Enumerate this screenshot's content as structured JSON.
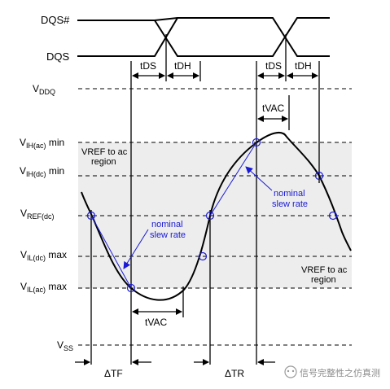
{
  "signals": {
    "dqs_n": "DQS#",
    "dqs": "DQS"
  },
  "timing": {
    "tds_1": "tDS",
    "tdh_1": "tDH",
    "tds_2": "tDS",
    "tdh_2": "tDH",
    "tvac_top": "tVAC",
    "tvac_bottom": "tVAC",
    "delta_tf": "ΔTF",
    "delta_tr": "ΔTR"
  },
  "levels": {
    "vddq": {
      "main": "V",
      "sub": "DDQ",
      "suffix": ""
    },
    "vih_ac": {
      "main": "V",
      "sub": "IH(ac)",
      "suffix": " min"
    },
    "vih_dc": {
      "main": "V",
      "sub": "IH(dc)",
      "suffix": " min"
    },
    "vref_dc": {
      "main": "V",
      "sub": "REF(dc)",
      "suffix": ""
    },
    "vil_dc": {
      "main": "V",
      "sub": "IL(dc)",
      "suffix": " max"
    },
    "vil_ac": {
      "main": "V",
      "sub": "IL(ac)",
      "suffix": " max"
    },
    "vss": {
      "main": "V",
      "sub": "SS",
      "suffix": ""
    }
  },
  "regions": {
    "vref_to_ac_upper": [
      "VREF to ac",
      "region"
    ],
    "vref_to_ac_lower": [
      "VREF to ac",
      "region"
    ]
  },
  "annotations": {
    "nominal_left": [
      "nominal",
      "slew rate"
    ],
    "nominal_right": [
      "nominal",
      "slew rate"
    ]
  },
  "watermark": "信号完整性之仿真测",
  "colors": {
    "annotation_blue": "#1a1ad6",
    "region_fill": "#ededed"
  }
}
